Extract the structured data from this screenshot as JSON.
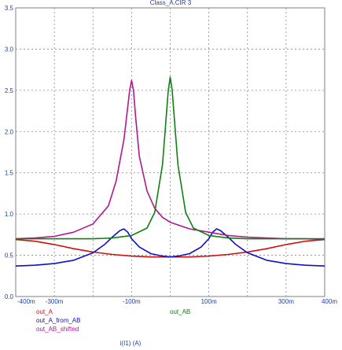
{
  "chart_data": {
    "type": "line",
    "title": "Class_A.CIR 3",
    "xlabel": "i(I1) (A)",
    "ylabel": "",
    "xlim": [
      -0.4,
      0.4
    ],
    "ylim": [
      0,
      3.5
    ],
    "grid": true,
    "x_tick_labels": [
      "-400m",
      "-300m",
      "-100m",
      "100m",
      "300m",
      "400m"
    ],
    "y_tick_labels": [
      "0.0",
      "0.5",
      "1.0",
      "1.5",
      "2.0",
      "2.5",
      "3.0",
      "3.5"
    ],
    "legend_position": "bottom-left",
    "series": [
      {
        "name": "out_A",
        "color": "#d01010",
        "x": [
          -0.4,
          -0.35,
          -0.3,
          -0.25,
          -0.2,
          -0.15,
          -0.1,
          -0.05,
          0.0,
          0.05,
          0.1,
          0.15,
          0.2,
          0.25,
          0.3,
          0.35,
          0.4
        ],
        "y": [
          0.69,
          0.67,
          0.63,
          0.58,
          0.54,
          0.51,
          0.49,
          0.48,
          0.48,
          0.48,
          0.49,
          0.51,
          0.54,
          0.58,
          0.63,
          0.67,
          0.69
        ]
      },
      {
        "name": "out_A_from_AB",
        "color": "#1010c8",
        "x": [
          -0.4,
          -0.35,
          -0.3,
          -0.25,
          -0.2,
          -0.17,
          -0.15,
          -0.13,
          -0.12,
          -0.11,
          -0.1,
          -0.08,
          -0.05,
          -0.02,
          0.0,
          0.02,
          0.05,
          0.08,
          0.1,
          0.11,
          0.12,
          0.13,
          0.15,
          0.17,
          0.2,
          0.25,
          0.3,
          0.35,
          0.4
        ],
        "y": [
          0.37,
          0.38,
          0.4,
          0.44,
          0.53,
          0.63,
          0.72,
          0.8,
          0.82,
          0.78,
          0.7,
          0.6,
          0.52,
          0.49,
          0.48,
          0.49,
          0.52,
          0.6,
          0.7,
          0.78,
          0.82,
          0.8,
          0.72,
          0.63,
          0.53,
          0.44,
          0.4,
          0.38,
          0.37
        ]
      },
      {
        "name": "out_AB_shifted",
        "color": "#b01890",
        "x": [
          -0.4,
          -0.35,
          -0.3,
          -0.25,
          -0.2,
          -0.16,
          -0.14,
          -0.12,
          -0.11,
          -0.105,
          -0.1,
          -0.095,
          -0.09,
          -0.08,
          -0.06,
          -0.04,
          -0.02,
          0.0,
          0.05,
          0.1,
          0.15,
          0.2,
          0.25,
          0.3,
          0.35,
          0.4
        ],
        "y": [
          0.7,
          0.71,
          0.73,
          0.78,
          0.88,
          1.1,
          1.4,
          1.9,
          2.3,
          2.5,
          2.62,
          2.5,
          2.2,
          1.7,
          1.28,
          1.07,
          0.96,
          0.9,
          0.82,
          0.78,
          0.74,
          0.72,
          0.71,
          0.7,
          0.7,
          0.69
        ]
      },
      {
        "name": "out_AB",
        "color": "#108010",
        "x": [
          -0.4,
          -0.3,
          -0.2,
          -0.15,
          -0.1,
          -0.06,
          -0.04,
          -0.02,
          -0.01,
          -0.005,
          0.0,
          0.005,
          0.01,
          0.02,
          0.04,
          0.06,
          0.1,
          0.15,
          0.2,
          0.3,
          0.4
        ],
        "y": [
          0.7,
          0.7,
          0.7,
          0.71,
          0.74,
          0.83,
          1.02,
          1.6,
          2.2,
          2.5,
          2.66,
          2.5,
          2.2,
          1.6,
          1.02,
          0.83,
          0.74,
          0.71,
          0.7,
          0.7,
          0.7
        ]
      }
    ]
  }
}
